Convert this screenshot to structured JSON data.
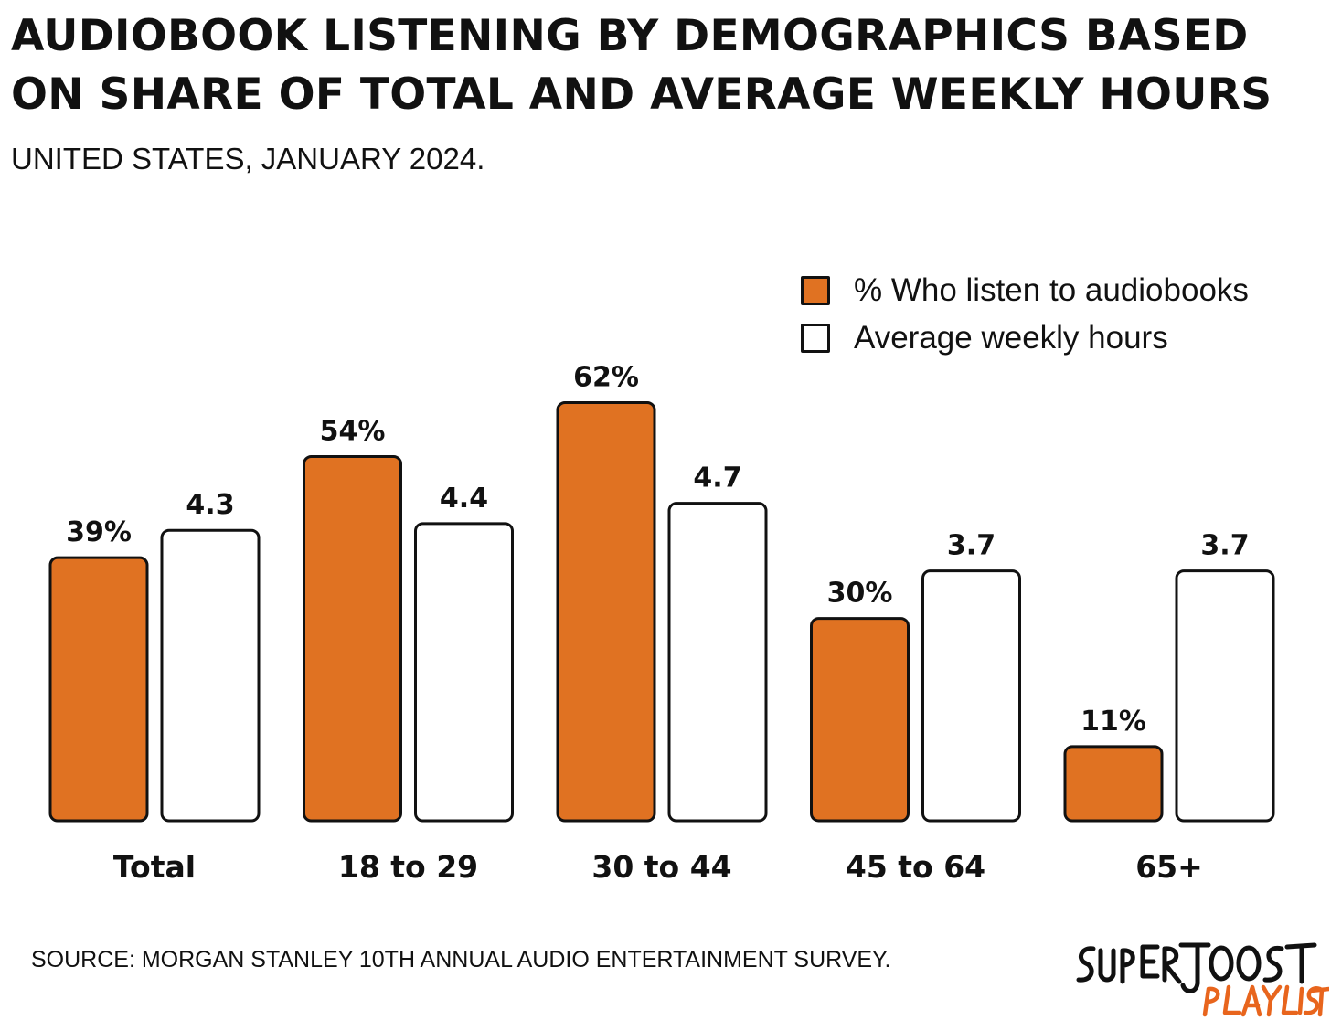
{
  "title_line1": "AUDIOBOOK LISTENING BY DEMOGRAPHICS BASED",
  "title_line2": "ON SHARE OF TOTAL AND AVERAGE WEEKLY HOURS",
  "subtitle": "UNITED STATES, JANUARY 2024.",
  "source": "SOURCE: MORGAN STANLEY 10TH ANNUAL AUDIO ENTERTAINMENT SURVEY.",
  "logo_text": "SUPERJOOST PLAYLIST",
  "colors": {
    "orange": "#e07222",
    "white": "#ffffff",
    "outline": "#111111",
    "logo_orange": "#e8651d"
  },
  "chart_data": {
    "type": "bar",
    "title": "AUDIOBOOK LISTENING BY DEMOGRAPHICS BASED ON SHARE OF TOTAL AND AVERAGE WEEKLY HOURS",
    "subtitle": "UNITED STATES, JANUARY 2024.",
    "categories": [
      "Total",
      "18 to 29",
      "30 to 44",
      "45 to 64",
      "65+"
    ],
    "series": [
      {
        "name": "% Who listen to audiobooks",
        "values": [
          39,
          54,
          62,
          30,
          11
        ],
        "labels": [
          "39%",
          "54%",
          "62%",
          "30%",
          "11%"
        ],
        "color": "#e07222"
      },
      {
        "name": "Average weekly hours",
        "values": [
          4.3,
          4.4,
          4.7,
          3.7,
          3.7
        ],
        "labels": [
          "4.3",
          "4.4",
          "4.7",
          "3.7",
          "3.7"
        ],
        "color": "#ffffff"
      }
    ],
    "legend": "top-right",
    "grid": false,
    "xlabel": "",
    "ylabel": ""
  }
}
